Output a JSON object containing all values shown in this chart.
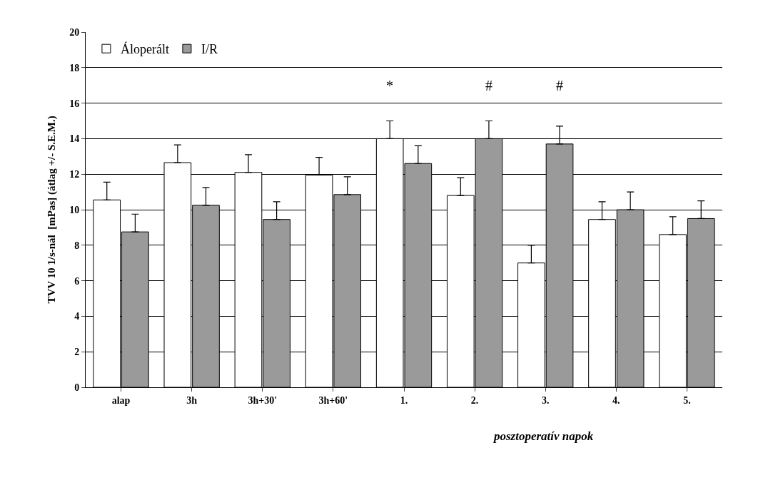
{
  "chart_data": {
    "type": "bar",
    "ylabel": "TVV 10 1/s-nál  [mPas] (átlag +/- S.E.M.)",
    "xlabel": "posztoperatív napok",
    "categories": [
      "alap",
      "3h",
      "3h+30'",
      "3h+60'",
      "1.",
      "2.",
      "3.",
      "4.",
      "5."
    ],
    "series": [
      {
        "name": "Áloperált",
        "color": "#ffffff",
        "values": [
          10.55,
          12.65,
          12.1,
          11.95,
          14.0,
          10.8,
          7.0,
          9.45,
          8.6
        ],
        "errors": [
          1.0,
          1.0,
          1.0,
          1.0,
          1.0,
          1.0,
          1.0,
          1.0,
          1.0
        ]
      },
      {
        "name": "I/R",
        "color": "#9a9a9a",
        "values": [
          8.75,
          10.25,
          9.45,
          10.85,
          12.6,
          14.0,
          13.7,
          10.0,
          9.5
        ],
        "errors": [
          1.0,
          1.0,
          1.0,
          1.0,
          1.0,
          1.0,
          1.0,
          1.0,
          1.0
        ]
      }
    ],
    "annotations": [
      "*",
      "#",
      "#"
    ],
    "ylim": [
      0,
      20
    ],
    "yticks": [
      0,
      2,
      4,
      6,
      8,
      10,
      12,
      14,
      16,
      18,
      20
    ],
    "grid": "y",
    "legend": "top left"
  }
}
